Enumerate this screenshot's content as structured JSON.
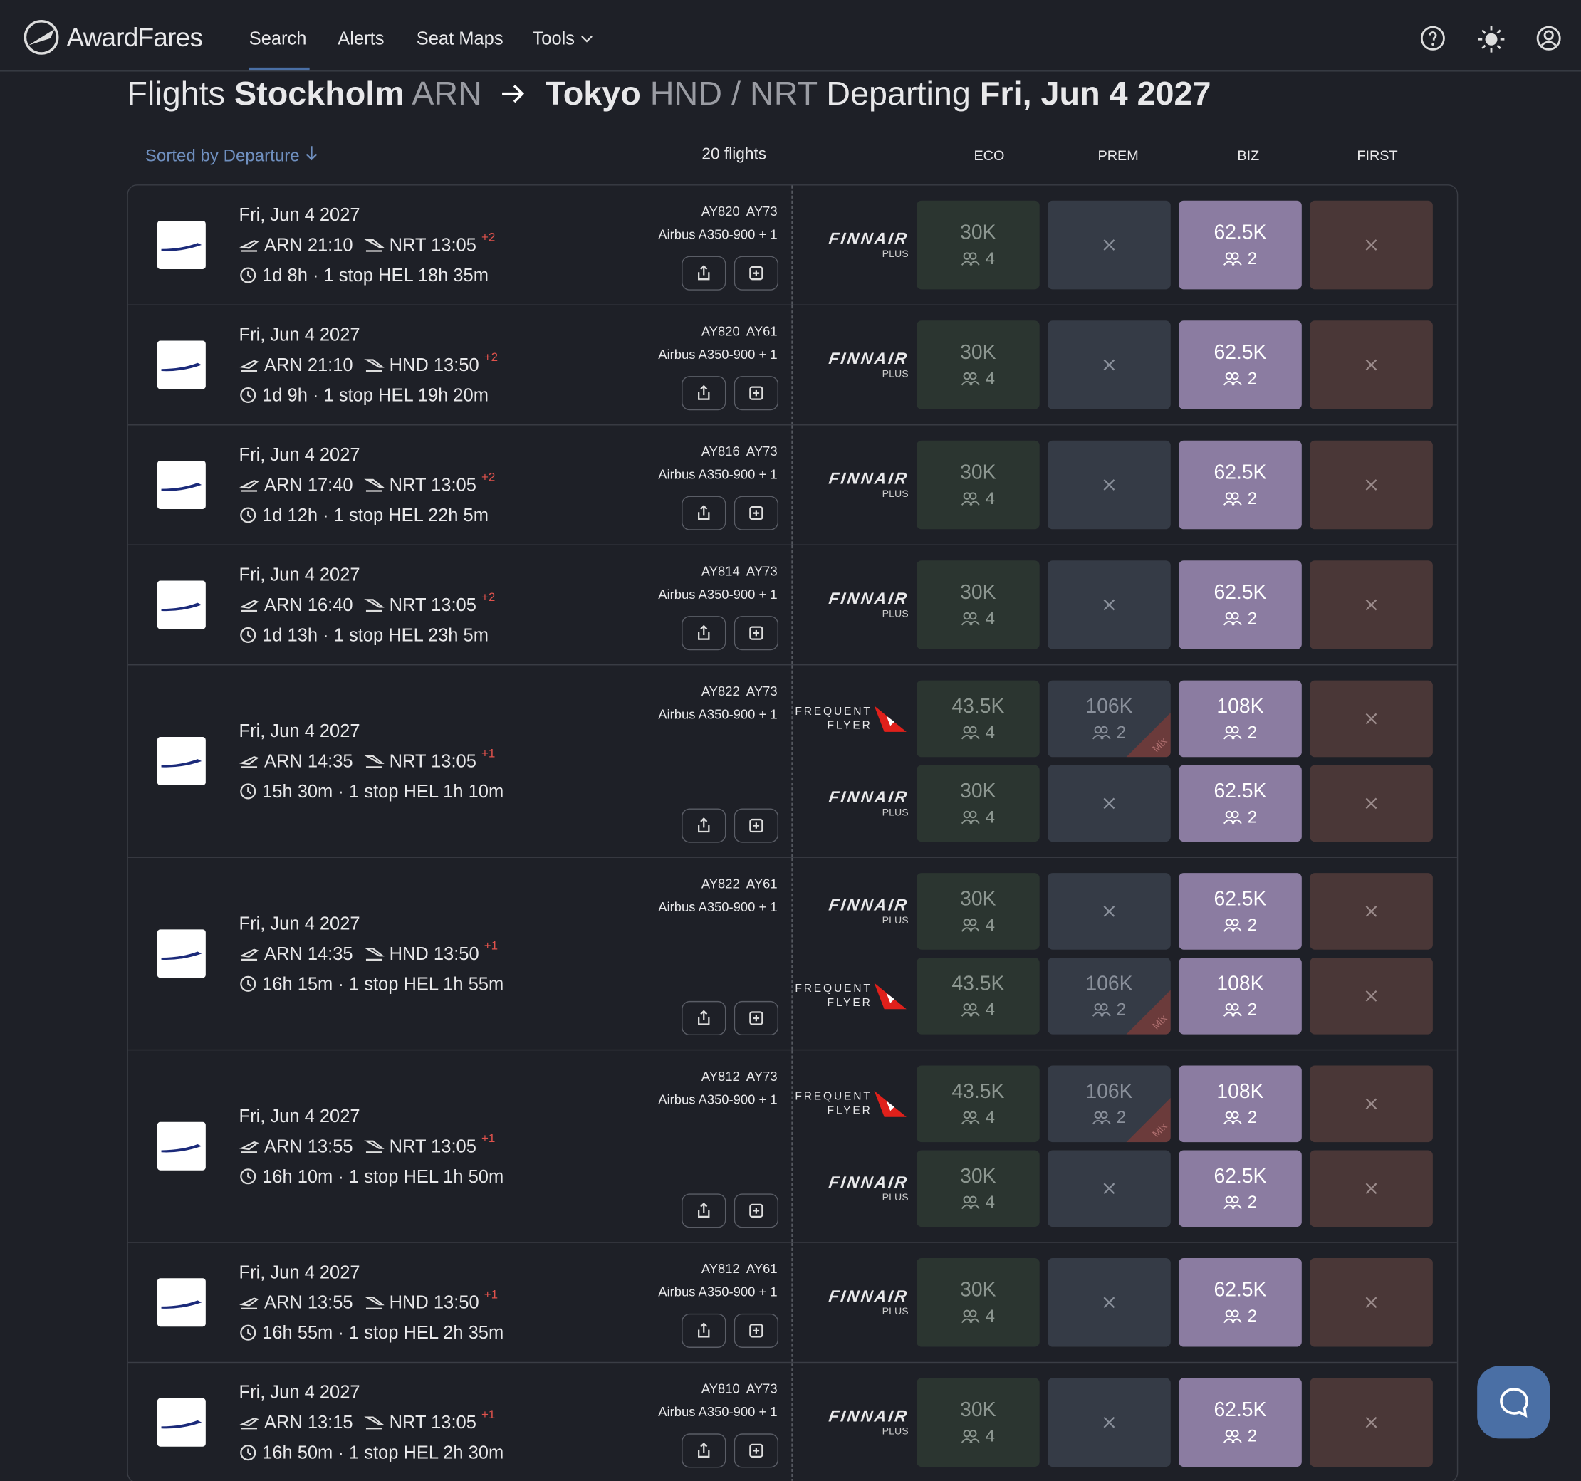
{
  "nav": {
    "brand": "AwardFares",
    "items": [
      "Search",
      "Alerts",
      "Seat Maps",
      "Tools"
    ]
  },
  "title": {
    "prefix": "Flights",
    "origin_city": "Stockholm",
    "origin_code": "ARN",
    "dest_city": "Tokyo",
    "dest_code": "HND / NRT",
    "departing": "Departing",
    "date": "Fri, Jun 4 2027"
  },
  "sort_label": "Sorted by Departure",
  "flight_count": "20 flights",
  "columns": [
    "ECO",
    "PREM",
    "BIZ",
    "FIRST"
  ],
  "programs": {
    "finnair": {
      "name": "FINNAIR",
      "sub": "PLUS"
    },
    "qantas": {
      "name": "FREQUENT",
      "sub": "FLYER"
    }
  },
  "flights": [
    {
      "date": "Fri, Jun 4 2027",
      "dep": "ARN 21:10",
      "arr": "NRT 13:05",
      "offset": "+2",
      "duration": "1d 8h",
      "stops": "1 stop HEL 18h 35m",
      "flight_numbers": "AY820  AY73",
      "aircraft": "Airbus A350-900 + 1",
      "fares": [
        {
          "program": "finnair",
          "cells": [
            {
              "points": "30K",
              "seats": "4"
            },
            null,
            {
              "points": "62.5K",
              "seats": "2"
            },
            null
          ]
        }
      ]
    },
    {
      "date": "Fri, Jun 4 2027",
      "dep": "ARN 21:10",
      "arr": "HND 13:50",
      "offset": "+2",
      "duration": "1d 9h",
      "stops": "1 stop HEL 19h 20m",
      "flight_numbers": "AY820  AY61",
      "aircraft": "Airbus A350-900 + 1",
      "fares": [
        {
          "program": "finnair",
          "cells": [
            {
              "points": "30K",
              "seats": "4"
            },
            null,
            {
              "points": "62.5K",
              "seats": "2"
            },
            null
          ]
        }
      ]
    },
    {
      "date": "Fri, Jun 4 2027",
      "dep": "ARN 17:40",
      "arr": "NRT 13:05",
      "offset": "+2",
      "duration": "1d 12h",
      "stops": "1 stop HEL 22h 5m",
      "flight_numbers": "AY816  AY73",
      "aircraft": "Airbus A350-900 + 1",
      "fares": [
        {
          "program": "finnair",
          "cells": [
            {
              "points": "30K",
              "seats": "4"
            },
            null,
            {
              "points": "62.5K",
              "seats": "2"
            },
            null
          ]
        }
      ]
    },
    {
      "date": "Fri, Jun 4 2027",
      "dep": "ARN 16:40",
      "arr": "NRT 13:05",
      "offset": "+2",
      "duration": "1d 13h",
      "stops": "1 stop HEL 23h 5m",
      "flight_numbers": "AY814  AY73",
      "aircraft": "Airbus A350-900 + 1",
      "fares": [
        {
          "program": "finnair",
          "cells": [
            {
              "points": "30K",
              "seats": "4"
            },
            null,
            {
              "points": "62.5K",
              "seats": "2"
            },
            null
          ]
        }
      ]
    },
    {
      "date": "Fri, Jun 4 2027",
      "dep": "ARN 14:35",
      "arr": "NRT 13:05",
      "offset": "+1",
      "duration": "15h 30m",
      "stops": "1 stop HEL 1h 10m",
      "flight_numbers": "AY822  AY73",
      "aircraft": "Airbus A350-900 + 1",
      "fares": [
        {
          "program": "qantas",
          "cells": [
            {
              "points": "43.5K",
              "seats": "4"
            },
            {
              "points": "106K",
              "seats": "2",
              "mix": "Mix"
            },
            {
              "points": "108K",
              "seats": "2"
            },
            null
          ]
        },
        {
          "program": "finnair",
          "cells": [
            {
              "points": "30K",
              "seats": "4"
            },
            null,
            {
              "points": "62.5K",
              "seats": "2"
            },
            null
          ]
        }
      ]
    },
    {
      "date": "Fri, Jun 4 2027",
      "dep": "ARN 14:35",
      "arr": "HND 13:50",
      "offset": "+1",
      "duration": "16h 15m",
      "stops": "1 stop HEL 1h 55m",
      "flight_numbers": "AY822  AY61",
      "aircraft": "Airbus A350-900 + 1",
      "fares": [
        {
          "program": "finnair",
          "cells": [
            {
              "points": "30K",
              "seats": "4"
            },
            null,
            {
              "points": "62.5K",
              "seats": "2"
            },
            null
          ]
        },
        {
          "program": "qantas",
          "cells": [
            {
              "points": "43.5K",
              "seats": "4"
            },
            {
              "points": "106K",
              "seats": "2",
              "mix": "Mix"
            },
            {
              "points": "108K",
              "seats": "2"
            },
            null
          ]
        }
      ]
    },
    {
      "date": "Fri, Jun 4 2027",
      "dep": "ARN 13:55",
      "arr": "NRT 13:05",
      "offset": "+1",
      "duration": "16h 10m",
      "stops": "1 stop HEL 1h 50m",
      "flight_numbers": "AY812  AY73",
      "aircraft": "Airbus A350-900 + 1",
      "fares": [
        {
          "program": "qantas",
          "cells": [
            {
              "points": "43.5K",
              "seats": "4"
            },
            {
              "points": "106K",
              "seats": "2",
              "mix": "Mix"
            },
            {
              "points": "108K",
              "seats": "2"
            },
            null
          ]
        },
        {
          "program": "finnair",
          "cells": [
            {
              "points": "30K",
              "seats": "4"
            },
            null,
            {
              "points": "62.5K",
              "seats": "2"
            },
            null
          ]
        }
      ]
    },
    {
      "date": "Fri, Jun 4 2027",
      "dep": "ARN 13:55",
      "arr": "HND 13:50",
      "offset": "+1",
      "duration": "16h 55m",
      "stops": "1 stop HEL 2h 35m",
      "flight_numbers": "AY812  AY61",
      "aircraft": "Airbus A350-900 + 1",
      "fares": [
        {
          "program": "finnair",
          "cells": [
            {
              "points": "30K",
              "seats": "4"
            },
            null,
            {
              "points": "62.5K",
              "seats": "2"
            },
            null
          ]
        }
      ]
    },
    {
      "date": "Fri, Jun 4 2027",
      "dep": "ARN 13:15",
      "arr": "NRT 13:05",
      "offset": "+1",
      "duration": "16h 50m",
      "stops": "1 stop HEL 2h 30m",
      "flight_numbers": "AY810  AY73",
      "aircraft": "Airbus A350-900 + 1",
      "fares": [
        {
          "program": "finnair",
          "cells": [
            {
              "points": "30K",
              "seats": "4"
            },
            null,
            {
              "points": "62.5K",
              "seats": "2"
            },
            null
          ]
        }
      ]
    }
  ]
}
